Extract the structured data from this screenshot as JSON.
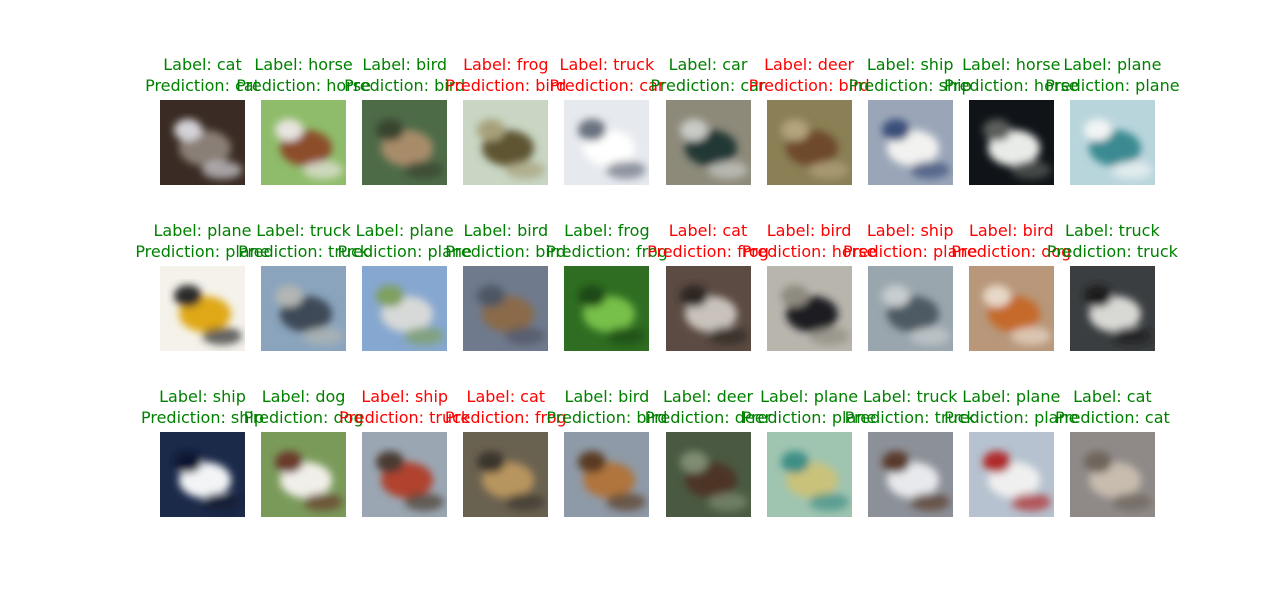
{
  "chart_data": {
    "type": "image_grid",
    "rows": 3,
    "cols": 10,
    "correct_color": "#008000",
    "wrong_color": "#ff0000",
    "label_prefix": "Label: ",
    "prediction_prefix": "Prediction: ",
    "items": [
      {
        "label": "cat",
        "prediction": "cat",
        "correct": true,
        "bg": "#3a2c24",
        "fg": "#8a7f76",
        "fg2": "#d5d3d8",
        "icon": "cat-image"
      },
      {
        "label": "horse",
        "prediction": "horse",
        "correct": true,
        "bg": "#8fbc6a",
        "fg": "#8c4d2a",
        "fg2": "#e8e4e0",
        "icon": "horse-image"
      },
      {
        "label": "bird",
        "prediction": "bird",
        "correct": true,
        "bg": "#4e6b48",
        "fg": "#a88c6a",
        "fg2": "#39452f",
        "icon": "bird-image"
      },
      {
        "label": "frog",
        "prediction": "bird",
        "correct": false,
        "bg": "#c8d6c3",
        "fg": "#5e5530",
        "fg2": "#a7a07a",
        "icon": "frog-image"
      },
      {
        "label": "truck",
        "prediction": "car",
        "correct": false,
        "bg": "#e6e9ee",
        "fg": "#ffffff",
        "fg2": "#6b7280",
        "icon": "truck-image"
      },
      {
        "label": "car",
        "prediction": "car",
        "correct": true,
        "bg": "#8d8a7a",
        "fg": "#243836",
        "fg2": "#c9cbc6",
        "icon": "car-image"
      },
      {
        "label": "deer",
        "prediction": "bird",
        "correct": false,
        "bg": "#8a7f55",
        "fg": "#6e4a2a",
        "fg2": "#b4a37a",
        "icon": "deer-image"
      },
      {
        "label": "ship",
        "prediction": "ship",
        "correct": true,
        "bg": "#9aa6b8",
        "fg": "#f2f2f0",
        "fg2": "#3a4f7a",
        "icon": "ship-image"
      },
      {
        "label": "horse",
        "prediction": "horse",
        "correct": true,
        "bg": "#101418",
        "fg": "#e9ebe8",
        "fg2": "#5b5f5c",
        "icon": "horse-image"
      },
      {
        "label": "plane",
        "prediction": "plane",
        "correct": true,
        "bg": "#b9d5dc",
        "fg": "#3a8a92",
        "fg2": "#f2f5f5",
        "icon": "plane-image"
      },
      {
        "label": "plane",
        "prediction": "plane",
        "correct": true,
        "bg": "#f4f2ea",
        "fg": "#e0a818",
        "fg2": "#2a2a2a",
        "icon": "plane-image"
      },
      {
        "label": "truck",
        "prediction": "truck",
        "correct": true,
        "bg": "#8aa4bd",
        "fg": "#3c4a57",
        "fg2": "#b2b6b4",
        "icon": "truck-image"
      },
      {
        "label": "plane",
        "prediction": "plane",
        "correct": true,
        "bg": "#86a7cf",
        "fg": "#d7d9d8",
        "fg2": "#7fa05e",
        "icon": "plane-image"
      },
      {
        "label": "bird",
        "prediction": "bird",
        "correct": true,
        "bg": "#6f7a8d",
        "fg": "#8a6a4a",
        "fg2": "#4e5664",
        "icon": "bird-image"
      },
      {
        "label": "frog",
        "prediction": "frog",
        "correct": true,
        "bg": "#2f6e22",
        "fg": "#77c04a",
        "fg2": "#1f4a16",
        "icon": "frog-image"
      },
      {
        "label": "cat",
        "prediction": "frog",
        "correct": false,
        "bg": "#5b4b42",
        "fg": "#c9c2bc",
        "fg2": "#2f2723",
        "icon": "cat-image"
      },
      {
        "label": "bird",
        "prediction": "horse",
        "correct": false,
        "bg": "#b8b5ad",
        "fg": "#1d1f24",
        "fg2": "#8e8a80",
        "icon": "bird-image"
      },
      {
        "label": "ship",
        "prediction": "plane",
        "correct": false,
        "bg": "#9aa6ad",
        "fg": "#4e5a63",
        "fg2": "#c7cdd0",
        "icon": "ship-image"
      },
      {
        "label": "bird",
        "prediction": "dog",
        "correct": false,
        "bg": "#b8977a",
        "fg": "#c56a2a",
        "fg2": "#e8d8c8",
        "icon": "bird-image"
      },
      {
        "label": "truck",
        "prediction": "truck",
        "correct": true,
        "bg": "#3a3e40",
        "fg": "#d8d8d4",
        "fg2": "#1a1c1e",
        "icon": "truck-image"
      },
      {
        "label": "ship",
        "prediction": "ship",
        "correct": true,
        "bg": "#1c2a4a",
        "fg": "#f2f4f6",
        "fg2": "#0f1830",
        "icon": "ship-image"
      },
      {
        "label": "dog",
        "prediction": "dog",
        "correct": true,
        "bg": "#7a9a5a",
        "fg": "#f1efe9",
        "fg2": "#6a3a2a",
        "icon": "dog-image"
      },
      {
        "label": "ship",
        "prediction": "truck",
        "correct": false,
        "bg": "#9aa7b3",
        "fg": "#b0422e",
        "fg2": "#4a3a30",
        "icon": "ship-image"
      },
      {
        "label": "cat",
        "prediction": "frog",
        "correct": false,
        "bg": "#6a6250",
        "fg": "#b8955e",
        "fg2": "#3a362e",
        "icon": "cat-image"
      },
      {
        "label": "bird",
        "prediction": "bird",
        "correct": true,
        "bg": "#8e9aa8",
        "fg": "#b0743e",
        "fg2": "#5a3a24",
        "icon": "bird-image"
      },
      {
        "label": "deer",
        "prediction": "deer",
        "correct": true,
        "bg": "#4a5a42",
        "fg": "#4e3526",
        "fg2": "#7f8c72",
        "icon": "deer-image"
      },
      {
        "label": "plane",
        "prediction": "plane",
        "correct": true,
        "bg": "#9fc4b0",
        "fg": "#c9c27a",
        "fg2": "#3e8f86",
        "icon": "plane-image"
      },
      {
        "label": "truck",
        "prediction": "truck",
        "correct": true,
        "bg": "#8c9098",
        "fg": "#e7e9ec",
        "fg2": "#5a3a2a",
        "icon": "truck-image"
      },
      {
        "label": "plane",
        "prediction": "plane",
        "correct": true,
        "bg": "#b6c2cf",
        "fg": "#f0f0f0",
        "fg2": "#b02a2a",
        "icon": "plane-image"
      },
      {
        "label": "cat",
        "prediction": "cat",
        "correct": true,
        "bg": "#8f8a88",
        "fg": "#c7bcae",
        "fg2": "#6e655c",
        "icon": "cat-image"
      }
    ]
  }
}
